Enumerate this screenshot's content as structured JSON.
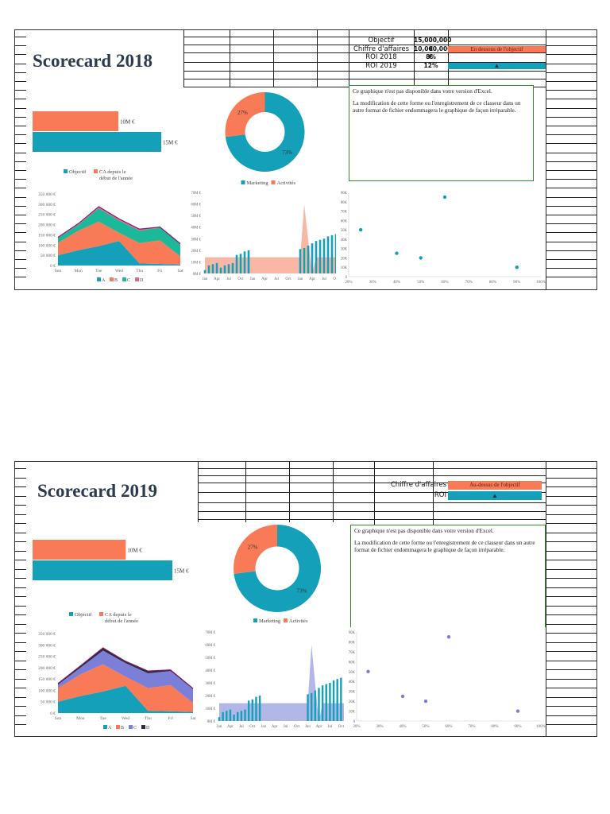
{
  "colors": {
    "teal": "#14a0b9",
    "orange": "#f97a57",
    "green": "#1bb89a",
    "pink": "#e5638a",
    "purple_line": "#8b1a6b",
    "lavender": "#7b7fd8",
    "dark": "#2b2b3a",
    "salmon_area": "#f9b8a6",
    "lavender_area": "#b3b7e8",
    "notice_border": "#2e8b2e"
  },
  "scorecards": [
    {
      "title": "Scorecard 2018",
      "kpi_rows": [
        {
          "label": "Objectif",
          "value": "15,000,000 €",
          "status": ""
        },
        {
          "label": "Chiffre d'affaires",
          "value": "10,000,000 €",
          "status": "En dessous de l'objectif"
        },
        {
          "label": "ROI 2018",
          "value": "8%",
          "status": ""
        },
        {
          "label": "ROI 2019",
          "value": "12%",
          "status": "▲"
        }
      ],
      "notice": {
        "line1": "Ce graphique n'est pas disponible dans votre version d'Excel.",
        "line2": "La modification de cette forme ou l'enregistrement de ce classeur dans un autre format de fichier endommagera le graphique de façon irréparable."
      },
      "bar_chart": {
        "type": "bar",
        "categories": [
          "CA depuis le début de l'année",
          "Objectif"
        ],
        "values": [
          10,
          15
        ],
        "labels": [
          "10M €",
          "15M €"
        ],
        "legend": [
          "Objectif",
          "CA depuis le début de l'année"
        ]
      },
      "donut_chart": {
        "type": "pie",
        "slices": [
          {
            "name": "Marketing",
            "value": 73,
            "label": "73%"
          },
          {
            "name": "Activités",
            "value": 27,
            "label": "27%"
          }
        ],
        "legend": [
          "Marketing",
          "Activités"
        ]
      },
      "area_chart": {
        "type": "area",
        "categories": [
          "Sun",
          "Mon",
          "Tue",
          "Wed",
          "Thu",
          "Fri",
          "Sat"
        ],
        "series": [
          {
            "name": "A",
            "values": [
              50000,
              75000,
              95000,
              120000,
              10000,
              8000,
              5000
            ]
          },
          {
            "name": "B",
            "values": [
              60000,
              95000,
              120000,
              40000,
              100000,
              115000,
              40000
            ]
          },
          {
            "name": "C",
            "values": [
              25000,
              30000,
              65000,
              60000,
              60000,
              62000,
              60000
            ]
          },
          {
            "name": "D",
            "values": [
              3000,
              5000,
              8000,
              8000,
              8000,
              3000,
              2000
            ]
          }
        ],
        "yticks": [
          "0 €",
          "50 000 €",
          "100 000 €",
          "150 000 €",
          "200 000 €",
          "250 000 €",
          "300 000 €",
          "350 000 €"
        ],
        "ylim": [
          0,
          350000
        ],
        "legend": [
          "A",
          "B",
          "C",
          "D"
        ]
      },
      "combo_chart": {
        "type": "bar",
        "xticks": [
          "Jan",
          "Apr",
          "Jul",
          "Oct",
          "Jan",
          "Apr",
          "Jul",
          "Oct",
          "Jan",
          "Apr",
          "Jul",
          "Oct"
        ],
        "yticks": [
          "0M €",
          "10M €",
          "20M €",
          "30M €",
          "40M €",
          "50M €",
          "60M €",
          "70M €"
        ],
        "ylim": [
          0,
          70
        ],
        "bars_year1": [
          3,
          7,
          8,
          9,
          5,
          7,
          8,
          9,
          16,
          17,
          19,
          20
        ],
        "bars_year3": [
          21,
          22,
          24,
          26,
          28,
          29,
          30,
          32,
          33,
          34
        ],
        "area_level": 14,
        "spike_peak": 60
      },
      "scatter_chart": {
        "type": "scatter",
        "points": [
          {
            "x": 25,
            "y": 50
          },
          {
            "x": 40,
            "y": 25
          },
          {
            "x": 50,
            "y": 20
          },
          {
            "x": 60,
            "y": 85
          },
          {
            "x": 90,
            "y": 10
          }
        ],
        "xticks": [
          "20%",
          "30%",
          "40%",
          "50%",
          "60%",
          "70%",
          "80%",
          "90%",
          "100%"
        ],
        "yticks": [
          "0",
          "10K",
          "20K",
          "30K",
          "40K",
          "50K",
          "60K",
          "70K",
          "80K",
          "90K"
        ],
        "xlim": [
          20,
          100
        ],
        "ylim": [
          0,
          90
        ]
      }
    },
    {
      "title": "Scorecard 2019",
      "kpi_rows": [
        {
          "label": "Chiffre d'affaires",
          "value": "",
          "status": "Au-dessus de l'objectif"
        },
        {
          "label": "ROI",
          "value": "",
          "status": "▲"
        }
      ],
      "notice": {
        "line1": "Ce graphique n'est pas disponible dans votre version d'Excel.",
        "line2": "La modification de cette forme ou l'enregistrement de ce classeur dans un autre format de fichier endommagera le graphique de façon irréparable."
      },
      "bar_chart": {
        "type": "bar",
        "categories": [
          "CA depuis le début de l'année",
          "Objectif"
        ],
        "values": [
          10,
          15
        ],
        "labels": [
          "10M €",
          "15M €"
        ],
        "legend": [
          "Objectif",
          "CA depuis le début de l'année"
        ]
      },
      "donut_chart": {
        "type": "pie",
        "slices": [
          {
            "name": "Marketing",
            "value": 73,
            "label": "73%"
          },
          {
            "name": "Activités",
            "value": 27,
            "label": "27%"
          }
        ],
        "legend": [
          "Marketing",
          "Activités"
        ]
      },
      "area_chart": {
        "type": "area",
        "categories": [
          "Sun",
          "Mon",
          "Tue",
          "Wed",
          "Thu",
          "Fri",
          "Sat"
        ],
        "series": [
          {
            "name": "A",
            "values": [
              50000,
              75000,
              95000,
              120000,
              10000,
              8000,
              5000
            ]
          },
          {
            "name": "B",
            "values": [
              60000,
              95000,
              120000,
              40000,
              100000,
              115000,
              40000
            ]
          },
          {
            "name": "C",
            "values": [
              15000,
              30000,
              60000,
              60000,
              65000,
              62000,
              60000
            ]
          },
          {
            "name": "D",
            "values": [
              5000,
              8000,
              12000,
              8000,
              10000,
              5000,
              3000
            ]
          }
        ],
        "yticks": [
          "0 €",
          "50 000 €",
          "100 000 €",
          "150 000 €",
          "200 000 €",
          "250 000 €",
          "300 000 €",
          "350 000 €"
        ],
        "ylim": [
          0,
          350000
        ],
        "legend": [
          "A",
          "B",
          "C",
          "D"
        ]
      },
      "combo_chart": {
        "type": "bar",
        "xticks": [
          "Jan",
          "Apr",
          "Jul",
          "Oct",
          "Jan",
          "Apr",
          "Jul",
          "Oct",
          "Jan",
          "Apr",
          "Jul",
          "Oct"
        ],
        "yticks": [
          "0M €",
          "10M €",
          "20M €",
          "30M €",
          "40M €",
          "50M €",
          "60M €",
          "70M €"
        ],
        "ylim": [
          0,
          70
        ],
        "bars_year1": [
          3,
          7,
          8,
          9,
          5,
          7,
          8,
          9,
          16,
          17,
          19,
          20
        ],
        "bars_year3": [
          21,
          22,
          24,
          26,
          28,
          29,
          30,
          32,
          33,
          34
        ],
        "area_level": 14,
        "spike_peak": 60
      },
      "scatter_chart": {
        "type": "scatter",
        "points": [
          {
            "x": 25,
            "y": 50
          },
          {
            "x": 40,
            "y": 25
          },
          {
            "x": 50,
            "y": 20
          },
          {
            "x": 60,
            "y": 85
          },
          {
            "x": 90,
            "y": 10
          }
        ],
        "xticks": [
          "20%",
          "30%",
          "40%",
          "50%",
          "60%",
          "70%",
          "80%",
          "90%",
          "100%"
        ],
        "yticks": [
          "0",
          "10K",
          "20K",
          "30K",
          "40K",
          "50K",
          "60K",
          "70K",
          "80K",
          "90K"
        ],
        "xlim": [
          20,
          100
        ],
        "ylim": [
          0,
          90
        ]
      }
    }
  ],
  "chart_data": [
    {
      "type": "bar",
      "title": "",
      "categories": [
        "CA depuis le début de l'année",
        "Objectif"
      ],
      "values": [
        10,
        15
      ],
      "unit": "M €"
    },
    {
      "type": "pie",
      "title": "",
      "categories": [
        "Marketing",
        "Activités"
      ],
      "values": [
        73,
        27
      ]
    },
    {
      "type": "area",
      "title": "",
      "categories": [
        "Sun",
        "Mon",
        "Tue",
        "Wed",
        "Thu",
        "Fri",
        "Sat"
      ],
      "series": [
        {
          "name": "A",
          "values": [
            50000,
            75000,
            95000,
            120000,
            10000,
            8000,
            5000
          ]
        },
        {
          "name": "B",
          "values": [
            60000,
            95000,
            120000,
            40000,
            100000,
            115000,
            40000
          ]
        },
        {
          "name": "C",
          "values": [
            25000,
            30000,
            65000,
            60000,
            60000,
            62000,
            60000
          ]
        },
        {
          "name": "D",
          "values": [
            3000,
            5000,
            8000,
            8000,
            8000,
            3000,
            2000
          ]
        }
      ],
      "ylim": [
        0,
        350000
      ]
    },
    {
      "type": "bar",
      "title": "",
      "xlabel": "",
      "ylabel": "",
      "ylim": [
        0,
        70
      ],
      "categories": [
        "Jan",
        "Apr",
        "Jul",
        "Oct",
        "Jan",
        "Apr",
        "Jul",
        "Oct",
        "Jan",
        "Apr",
        "Jul",
        "Oct"
      ]
    },
    {
      "type": "scatter",
      "title": "",
      "x": [
        25,
        40,
        50,
        60,
        90
      ],
      "y": [
        50,
        25,
        20,
        85,
        10
      ],
      "xlim": [
        20,
        100
      ],
      "ylim": [
        0,
        90
      ]
    }
  ]
}
